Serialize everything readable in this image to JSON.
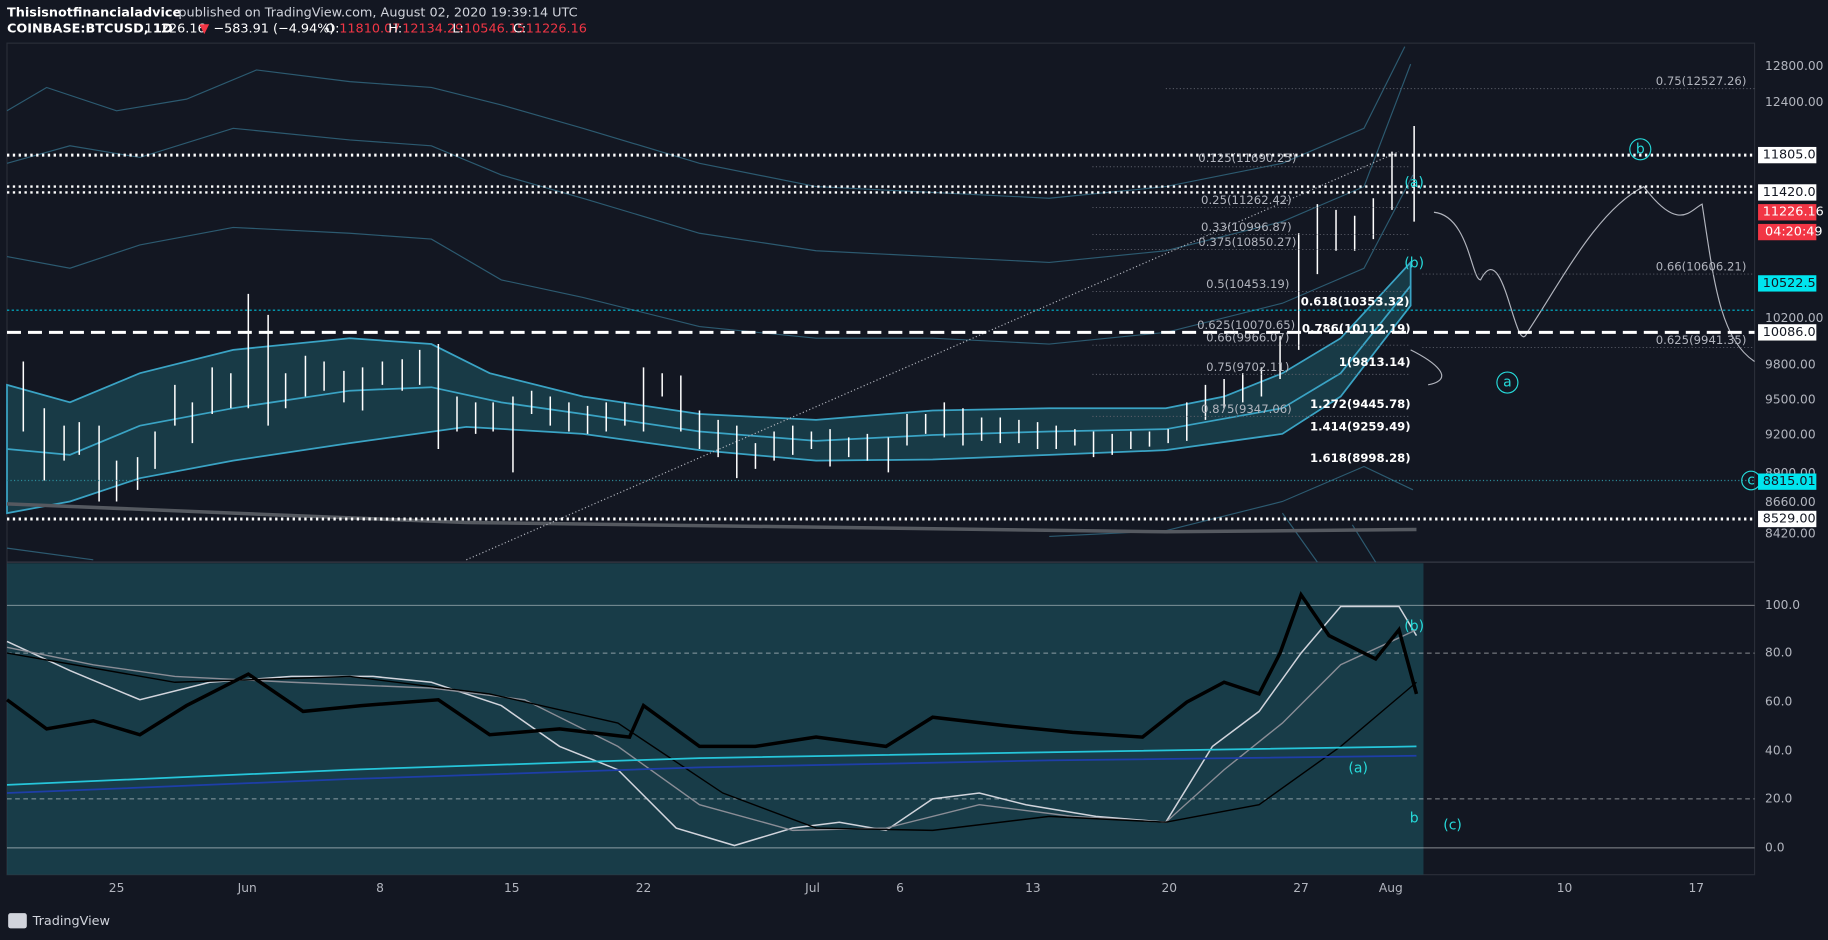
{
  "header": {
    "author": "Thisisnotfinancialadvice",
    "published": " published on TradingView.com, August 02, 2020 19:39:14 UTC"
  },
  "symbol": {
    "name": "COINBASE:BTCUSD, 1D",
    "last": "11226.16",
    "arrow": "▼",
    "change": "−583.91 (−4.94%)",
    "ohlc": [
      {
        "label": "O:",
        "value": "11810.07"
      },
      {
        "label": "H:",
        "value": "12134.29"
      },
      {
        "label": "L:",
        "value": "10546.15"
      },
      {
        "label": "C:",
        "value": "11226.16"
      }
    ]
  },
  "price_axis": {
    "ticks": [
      "12800.00",
      "12400.00",
      "10200.00",
      "9800.00",
      "9500.00",
      "9200.00",
      "8900.00",
      "8660.00",
      "8420.00"
    ],
    "markers": [
      "11805.00",
      "11420.00",
      "11226.16",
      "04:20:49",
      "10522.51",
      "10086.00",
      "8815.01",
      "8529.00"
    ]
  },
  "oscillator_axis": [
    "100.0",
    "80.0",
    "60.0",
    "40.0",
    "20.0",
    "0.0"
  ],
  "time_axis": [
    "25",
    "Jun",
    "8",
    "15",
    "22",
    "Jul",
    "6",
    "13",
    "20",
    "27",
    "Aug",
    "10",
    "17"
  ],
  "fib_labels": [
    "0.75(12527.26)",
    "0.125(11690.25)",
    "0.25(11262.42)",
    "0.33(10996.87)",
    "0.375(10850.27)",
    "0.5(10453.19)",
    "0.618(10353.32)",
    "0.625(10070.65)",
    "0.786(10112.19)",
    "0.66(9966.07)",
    "0.75(9702.11)",
    "1(9813.14)",
    "0.875(9347.06)",
    "1.272(9445.78)",
    "1.414(9259.49)",
    "1.618(8998.28)",
    "0.66(10606.21)",
    "0.625(9941.35)"
  ],
  "wave_labels": [
    "b",
    "(a)",
    "(b)",
    "a",
    "(b)",
    "(a)",
    "b",
    "(c)",
    "c"
  ],
  "footer": "TradingView"
}
